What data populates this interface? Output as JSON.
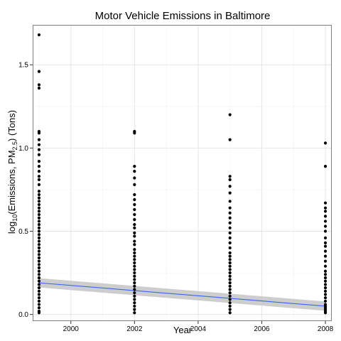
{
  "chart_data": {
    "type": "scatter",
    "title": "Motor Vehicle Emissions in Baltimore",
    "xlabel": "Year",
    "ylabel": {
      "prefix": "log",
      "prefix_sub": "10",
      "middle": "(Emissions, PM",
      "middle_sub": "2.5",
      "suffix": ") (Tons)"
    },
    "xlim": [
      1998.8,
      2008.2
    ],
    "ylim": [
      -0.04,
      1.74
    ],
    "x_ticks": [
      2000,
      2002,
      2004,
      2006,
      2008
    ],
    "x_tick_labels": [
      "2000",
      "2002",
      "2004",
      "2006",
      "2008"
    ],
    "y_ticks": [
      0.0,
      0.5,
      1.0,
      1.5
    ],
    "y_tick_labels": [
      "0.0",
      "0.5",
      "1.0",
      "1.5"
    ],
    "grid": true,
    "theme": "bw",
    "point_color": "#000000",
    "trend_color": "#3366ff",
    "band_color": "#c8c8c8",
    "series": [
      {
        "x": 1999,
        "y": [
          1.68,
          1.46,
          1.38,
          1.36,
          1.1,
          1.09,
          1.05,
          1.02,
          0.99,
          0.96,
          0.92,
          0.89,
          0.86,
          0.83,
          0.81,
          0.78,
          0.74,
          0.72,
          0.7,
          0.68,
          0.66,
          0.64,
          0.62,
          0.6,
          0.58,
          0.56,
          0.54,
          0.52,
          0.5,
          0.48,
          0.46,
          0.44,
          0.42,
          0.4,
          0.38,
          0.36,
          0.34,
          0.32,
          0.3,
          0.28,
          0.26,
          0.24,
          0.22,
          0.2,
          0.18,
          0.16,
          0.14,
          0.12,
          0.1,
          0.08,
          0.06,
          0.04,
          0.02,
          0.01
        ]
      },
      {
        "x": 2002,
        "y": [
          1.1,
          1.09,
          0.89,
          0.86,
          0.82,
          0.78,
          0.72,
          0.69,
          0.66,
          0.63,
          0.6,
          0.57,
          0.54,
          0.52,
          0.49,
          0.47,
          0.44,
          0.42,
          0.39,
          0.37,
          0.35,
          0.33,
          0.31,
          0.29,
          0.27,
          0.25,
          0.23,
          0.21,
          0.19,
          0.17,
          0.15,
          0.13,
          0.11,
          0.09,
          0.07,
          0.05,
          0.03,
          0.01
        ]
      },
      {
        "x": 2005,
        "y": [
          1.2,
          1.05,
          0.83,
          0.81,
          0.77,
          0.73,
          0.68,
          0.64,
          0.61,
          0.58,
          0.55,
          0.52,
          0.49,
          0.46,
          0.43,
          0.4,
          0.37,
          0.35,
          0.33,
          0.31,
          0.29,
          0.27,
          0.25,
          0.23,
          0.21,
          0.19,
          0.17,
          0.15,
          0.13,
          0.11,
          0.09,
          0.07,
          0.05,
          0.03,
          0.01
        ]
      },
      {
        "x": 2008,
        "y": [
          1.03,
          0.89,
          0.67,
          0.64,
          0.62,
          0.59,
          0.56,
          0.53,
          0.5,
          0.46,
          0.43,
          0.41,
          0.38,
          0.35,
          0.32,
          0.29,
          0.26,
          0.24,
          0.22,
          0.2,
          0.18,
          0.16,
          0.14,
          0.12,
          0.1,
          0.08,
          0.06,
          0.05,
          0.04,
          0.03,
          0.02,
          0.01
        ]
      }
    ],
    "trend": {
      "x": [
        1999,
        2008
      ],
      "y": [
        0.19,
        0.05
      ],
      "band_half_width": [
        0.028,
        0.028
      ]
    }
  }
}
